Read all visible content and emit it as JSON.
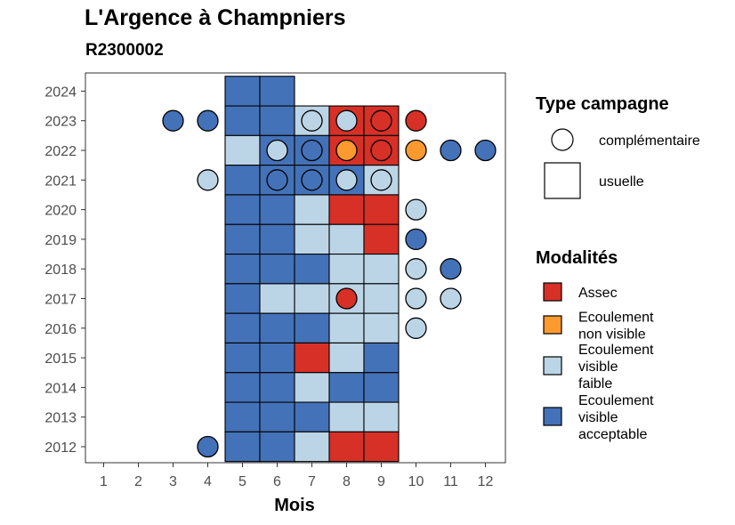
{
  "title": "L'Argence à Champniers",
  "subtitle": "R2300002",
  "chart_data": {
    "type": "heatmap",
    "xlabel": "Mois",
    "x_ticks": [
      "1",
      "2",
      "3",
      "4",
      "5",
      "6",
      "7",
      "8",
      "9",
      "10",
      "11",
      "12"
    ],
    "y_ticks": [
      "2012",
      "2013",
      "2014",
      "2015",
      "2016",
      "2017",
      "2018",
      "2019",
      "2020",
      "2021",
      "2022",
      "2023",
      "2024"
    ],
    "grid": false,
    "legend_position": "right",
    "colors": {
      "Assec": "#d73027",
      "Ecoulement non visible": "#fd9a2f",
      "Ecoulement visible faible": "#bcd5e6",
      "Ecoulement visible acceptable": "#4472b8"
    },
    "legend_type": {
      "title": "Type campagne",
      "entries": [
        {
          "key": "complementaire",
          "label": "complémentaire",
          "shape": "circle"
        },
        {
          "key": "usuelle",
          "label": "usuelle",
          "shape": "square"
        }
      ]
    },
    "legend_modalites": {
      "title": "Modalités",
      "entries": [
        {
          "key": "Assec",
          "lines": [
            "Assec"
          ]
        },
        {
          "key": "Ecoulement non visible",
          "lines": [
            "Ecoulement",
            "non visible"
          ]
        },
        {
          "key": "Ecoulement visible faible",
          "lines": [
            "Ecoulement",
            "visible",
            "faible"
          ]
        },
        {
          "key": "Ecoulement visible acceptable",
          "lines": [
            "Ecoulement",
            "visible",
            "acceptable"
          ]
        }
      ]
    },
    "usuelle": [
      {
        "year": 2024,
        "month": 5,
        "value": "Ecoulement visible acceptable"
      },
      {
        "year": 2024,
        "month": 6,
        "value": "Ecoulement visible acceptable"
      },
      {
        "year": 2023,
        "month": 5,
        "value": "Ecoulement visible acceptable"
      },
      {
        "year": 2023,
        "month": 6,
        "value": "Ecoulement visible acceptable"
      },
      {
        "year": 2023,
        "month": 7,
        "value": "Ecoulement visible faible"
      },
      {
        "year": 2023,
        "month": 8,
        "value": "Assec"
      },
      {
        "year": 2023,
        "month": 9,
        "value": "Assec"
      },
      {
        "year": 2022,
        "month": 5,
        "value": "Ecoulement visible faible"
      },
      {
        "year": 2022,
        "month": 6,
        "value": "Ecoulement visible acceptable"
      },
      {
        "year": 2022,
        "month": 7,
        "value": "Ecoulement visible acceptable"
      },
      {
        "year": 2022,
        "month": 8,
        "value": "Assec"
      },
      {
        "year": 2022,
        "month": 9,
        "value": "Assec"
      },
      {
        "year": 2021,
        "month": 5,
        "value": "Ecoulement visible acceptable"
      },
      {
        "year": 2021,
        "month": 6,
        "value": "Ecoulement visible acceptable"
      },
      {
        "year": 2021,
        "month": 7,
        "value": "Ecoulement visible acceptable"
      },
      {
        "year": 2021,
        "month": 8,
        "value": "Ecoulement visible acceptable"
      },
      {
        "year": 2021,
        "month": 9,
        "value": "Ecoulement visible faible"
      },
      {
        "year": 2020,
        "month": 5,
        "value": "Ecoulement visible acceptable"
      },
      {
        "year": 2020,
        "month": 6,
        "value": "Ecoulement visible acceptable"
      },
      {
        "year": 2020,
        "month": 7,
        "value": "Ecoulement visible faible"
      },
      {
        "year": 2020,
        "month": 8,
        "value": "Assec"
      },
      {
        "year": 2020,
        "month": 9,
        "value": "Assec"
      },
      {
        "year": 2019,
        "month": 5,
        "value": "Ecoulement visible acceptable"
      },
      {
        "year": 2019,
        "month": 6,
        "value": "Ecoulement visible acceptable"
      },
      {
        "year": 2019,
        "month": 7,
        "value": "Ecoulement visible faible"
      },
      {
        "year": 2019,
        "month": 8,
        "value": "Ecoulement visible faible"
      },
      {
        "year": 2019,
        "month": 9,
        "value": "Assec"
      },
      {
        "year": 2018,
        "month": 5,
        "value": "Ecoulement visible acceptable"
      },
      {
        "year": 2018,
        "month": 6,
        "value": "Ecoulement visible acceptable"
      },
      {
        "year": 2018,
        "month": 7,
        "value": "Ecoulement visible acceptable"
      },
      {
        "year": 2018,
        "month": 8,
        "value": "Ecoulement visible faible"
      },
      {
        "year": 2018,
        "month": 9,
        "value": "Ecoulement visible faible"
      },
      {
        "year": 2017,
        "month": 5,
        "value": "Ecoulement visible acceptable"
      },
      {
        "year": 2017,
        "month": 6,
        "value": "Ecoulement visible faible"
      },
      {
        "year": 2017,
        "month": 7,
        "value": "Ecoulement visible faible"
      },
      {
        "year": 2017,
        "month": 8,
        "value": "Ecoulement visible faible"
      },
      {
        "year": 2017,
        "month": 9,
        "value": "Ecoulement visible faible"
      },
      {
        "year": 2016,
        "month": 5,
        "value": "Ecoulement visible acceptable"
      },
      {
        "year": 2016,
        "month": 6,
        "value": "Ecoulement visible acceptable"
      },
      {
        "year": 2016,
        "month": 7,
        "value": "Ecoulement visible acceptable"
      },
      {
        "year": 2016,
        "month": 8,
        "value": "Ecoulement visible faible"
      },
      {
        "year": 2016,
        "month": 9,
        "value": "Ecoulement visible faible"
      },
      {
        "year": 2015,
        "month": 5,
        "value": "Ecoulement visible acceptable"
      },
      {
        "year": 2015,
        "month": 6,
        "value": "Ecoulement visible acceptable"
      },
      {
        "year": 2015,
        "month": 7,
        "value": "Assec"
      },
      {
        "year": 2015,
        "month": 8,
        "value": "Ecoulement visible faible"
      },
      {
        "year": 2015,
        "month": 9,
        "value": "Ecoulement visible acceptable"
      },
      {
        "year": 2014,
        "month": 5,
        "value": "Ecoulement visible acceptable"
      },
      {
        "year": 2014,
        "month": 6,
        "value": "Ecoulement visible acceptable"
      },
      {
        "year": 2014,
        "month": 7,
        "value": "Ecoulement visible faible"
      },
      {
        "year": 2014,
        "month": 8,
        "value": "Ecoulement visible acceptable"
      },
      {
        "year": 2014,
        "month": 9,
        "value": "Ecoulement visible acceptable"
      },
      {
        "year": 2013,
        "month": 5,
        "value": "Ecoulement visible acceptable"
      },
      {
        "year": 2013,
        "month": 6,
        "value": "Ecoulement visible acceptable"
      },
      {
        "year": 2013,
        "month": 7,
        "value": "Ecoulement visible acceptable"
      },
      {
        "year": 2013,
        "month": 8,
        "value": "Ecoulement visible faible"
      },
      {
        "year": 2013,
        "month": 9,
        "value": "Ecoulement visible faible"
      },
      {
        "year": 2012,
        "month": 5,
        "value": "Ecoulement visible acceptable"
      },
      {
        "year": 2012,
        "month": 6,
        "value": "Ecoulement visible acceptable"
      },
      {
        "year": 2012,
        "month": 7,
        "value": "Ecoulement visible faible"
      },
      {
        "year": 2012,
        "month": 8,
        "value": "Assec"
      },
      {
        "year": 2012,
        "month": 9,
        "value": "Assec"
      }
    ],
    "complementaire": [
      {
        "year": 2023,
        "month": 3,
        "value": "Ecoulement visible acceptable"
      },
      {
        "year": 2023,
        "month": 4,
        "value": "Ecoulement visible acceptable"
      },
      {
        "year": 2023,
        "month": 7,
        "value": "Ecoulement visible faible"
      },
      {
        "year": 2023,
        "month": 8,
        "value": "Ecoulement visible faible"
      },
      {
        "year": 2023,
        "month": 9,
        "value": "Assec"
      },
      {
        "year": 2023,
        "month": 10,
        "value": "Assec"
      },
      {
        "year": 2022,
        "month": 6,
        "value": "Ecoulement visible faible"
      },
      {
        "year": 2022,
        "month": 7,
        "value": "Ecoulement visible acceptable"
      },
      {
        "year": 2022,
        "month": 8,
        "value": "Ecoulement non visible"
      },
      {
        "year": 2022,
        "month": 9,
        "value": "Assec"
      },
      {
        "year": 2022,
        "month": 10,
        "value": "Ecoulement non visible"
      },
      {
        "year": 2022,
        "month": 11,
        "value": "Ecoulement visible acceptable"
      },
      {
        "year": 2022,
        "month": 12,
        "value": "Ecoulement visible acceptable"
      },
      {
        "year": 2021,
        "month": 4,
        "value": "Ecoulement visible faible"
      },
      {
        "year": 2021,
        "month": 6,
        "value": "Ecoulement visible acceptable"
      },
      {
        "year": 2021,
        "month": 7,
        "value": "Ecoulement visible acceptable"
      },
      {
        "year": 2021,
        "month": 8,
        "value": "Ecoulement visible faible"
      },
      {
        "year": 2021,
        "month": 9,
        "value": "Ecoulement visible faible"
      },
      {
        "year": 2020,
        "month": 10,
        "value": "Ecoulement visible faible"
      },
      {
        "year": 2019,
        "month": 10,
        "value": "Ecoulement visible acceptable"
      },
      {
        "year": 2018,
        "month": 10,
        "value": "Ecoulement visible faible"
      },
      {
        "year": 2018,
        "month": 11,
        "value": "Ecoulement visible acceptable"
      },
      {
        "year": 2017,
        "month": 8,
        "value": "Assec"
      },
      {
        "year": 2017,
        "month": 10,
        "value": "Ecoulement visible faible"
      },
      {
        "year": 2017,
        "month": 11,
        "value": "Ecoulement visible faible"
      },
      {
        "year": 2016,
        "month": 10,
        "value": "Ecoulement visible faible"
      },
      {
        "year": 2012,
        "month": 4,
        "value": "Ecoulement visible acceptable"
      }
    ]
  }
}
